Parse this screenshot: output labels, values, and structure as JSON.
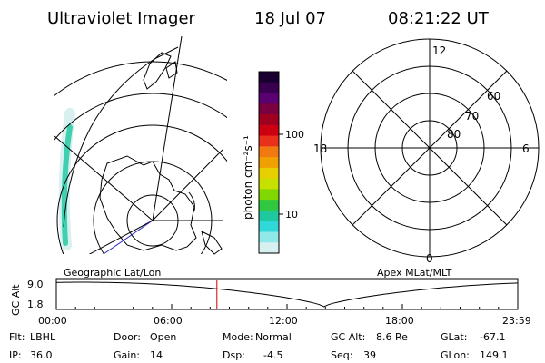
{
  "header": {
    "instrument": "Ultraviolet Imager",
    "date": "18 Jul 07",
    "time": "08:21:22 UT"
  },
  "colorbar": {
    "unit_label": "photon cm⁻²s⁻¹",
    "ticks": [
      "100",
      "10"
    ],
    "colors_top_to_bottom": [
      "#1a0030",
      "#3a0050",
      "#5a0070",
      "#7a0040",
      "#a00020",
      "#cc0010",
      "#e8301a",
      "#f07a10",
      "#f0a000",
      "#e8d000",
      "#c8e000",
      "#80d800",
      "#30c840",
      "#20c8a0",
      "#30d8d8",
      "#90e8e8",
      "#d8f0f0"
    ]
  },
  "geo_map": {
    "label": "Geographic Lat/Lon"
  },
  "apex_map": {
    "label": "Apex MLat/MLT",
    "mlt_labels": {
      "top": "12",
      "bottom": "0",
      "left": "18",
      "right": "6"
    },
    "lat_labels": [
      "60",
      "70",
      "80"
    ]
  },
  "timeline": {
    "ylabel": "GC Alt",
    "ymax": "9.0",
    "ymin": "1.8",
    "x_labels": [
      "00:00",
      "06:00",
      "12:00",
      "18:00",
      "23:59"
    ],
    "current_time_fraction": 0.3481,
    "marker_color": "#cc0000"
  },
  "info": {
    "filter_label": "Flt:",
    "filter_value": "LBHL",
    "door_label": "Door:",
    "door_value": "Open",
    "mode_label": "Mode:",
    "mode_value": "Normal",
    "gcalt_label": "GC Alt:",
    "gcalt_value": "8.6 Re",
    "glat_label": "GLat:",
    "glat_value": "-67.1",
    "ip_label": "IP:",
    "ip_value": "36.0",
    "gain_label": "Gain:",
    "gain_value": "14",
    "dsp_label": "Dsp:",
    "dsp_value": "-4.5",
    "seq_label": "Seq:",
    "seq_value": "39",
    "glon_label": "GLon:",
    "glon_value": "149.1"
  }
}
